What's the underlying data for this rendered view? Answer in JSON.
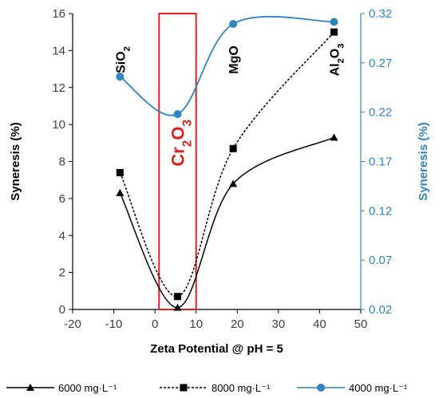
{
  "chart_data": {
    "type": "line",
    "xlabel": "Zeta Potential @ pH = 5",
    "ylabel": "Syneresis (%)",
    "y2label": "Syneresis (%)",
    "xlim": [
      -20,
      50
    ],
    "ylim": [
      0,
      16
    ],
    "y2lim": [
      0.02,
      0.32
    ],
    "xticks": [
      "-20",
      "-10",
      "0",
      "10",
      "20",
      "30",
      "40",
      "50"
    ],
    "yticks": [
      "0",
      "2",
      "4",
      "6",
      "8",
      "10",
      "12",
      "14",
      "16"
    ],
    "y2ticks": [
      "0.02",
      "0.07",
      "0.12",
      "0.17",
      "0.22",
      "0.27",
      "0.32"
    ],
    "series": [
      {
        "name": "6000 mg·L⁻¹",
        "axis": "left",
        "style": "solid",
        "marker": "triangle",
        "color": "#000000",
        "points": [
          [
            -8.5,
            6.3
          ],
          [
            5.5,
            0.1
          ],
          [
            19,
            6.8
          ],
          [
            43.5,
            9.3
          ]
        ]
      },
      {
        "name": "8000 mg·L⁻¹",
        "axis": "left",
        "style": "dashed",
        "marker": "square",
        "color": "#000000",
        "points": [
          [
            -8.5,
            7.4
          ],
          [
            5.5,
            0.7
          ],
          [
            19,
            8.7
          ],
          [
            43.5,
            15.0
          ]
        ]
      },
      {
        "name": "4000 mg·L⁻¹",
        "axis": "right",
        "style": "solid",
        "marker": "circle",
        "color": "#2E86C1",
        "points": [
          [
            -8.5,
            0.256
          ],
          [
            5.5,
            0.218
          ],
          [
            19,
            0.3095
          ],
          [
            43.5,
            0.3115
          ]
        ]
      }
    ],
    "annotations": [
      {
        "label": "SiO2",
        "x": -8.5,
        "y": 13.5
      },
      {
        "label": "Cr2O3",
        "x": 5.5,
        "y": 9
      },
      {
        "label": "MgO",
        "x": 19,
        "y": 13.5
      },
      {
        "label": "Al2O3",
        "x": 43.5,
        "y": 13.5
      }
    ],
    "highlight_box": {
      "x": [
        1.0,
        10.0
      ],
      "y": [
        0,
        16
      ],
      "color": "#E02020"
    },
    "grid": false,
    "legend": "bottom"
  }
}
